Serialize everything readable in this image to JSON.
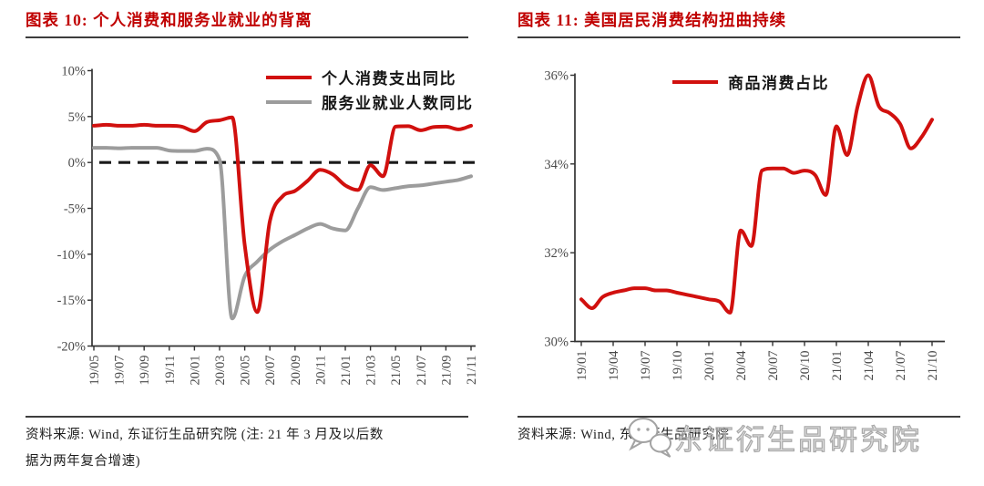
{
  "colors": {
    "title_red": "#c00000",
    "line_red": "#d1100e",
    "line_gray": "#9c9c9c",
    "dashed_reference": "#1a1a1a",
    "axis": "#333333",
    "tick_label": "#4a4a4a",
    "watermark_gray": "#a8a8a8"
  },
  "watermark": {
    "icon": "speech-bubbles-logo",
    "text": "东证衍生品研究院"
  },
  "charts": [
    {
      "header": "图表 10:  个人消费和服务业就业的背离",
      "legend": [
        {
          "label": "个人消费支出同比",
          "color": "#d1100e"
        },
        {
          "label": "服务业就业人数同比",
          "color": "#9c9c9c"
        }
      ],
      "source_lines": [
        "资料来源: Wind, 东证衍生品研究院 (注: 21 年 3 月及以后数",
        "据为两年复合增速)"
      ],
      "chart_data": {
        "type": "line",
        "x": [
          "19/05",
          "19/06",
          "19/07",
          "19/08",
          "19/09",
          "19/10",
          "19/11",
          "19/12",
          "20/01",
          "20/02",
          "20/03",
          "20/04",
          "20/05",
          "20/06",
          "20/07",
          "20/08",
          "20/09",
          "20/10",
          "20/11",
          "20/12",
          "21/01",
          "21/02",
          "21/03",
          "21/04",
          "21/05",
          "21/06",
          "21/07",
          "21/08",
          "21/09",
          "21/10",
          "21/11"
        ],
        "x_tick_labels": [
          "19/05",
          "19/07",
          "19/09",
          "19/11",
          "20/01",
          "20/03",
          "20/05",
          "20/07",
          "20/09",
          "20/11",
          "21/01",
          "21/03",
          "21/05",
          "21/07",
          "21/09",
          "21/11"
        ],
        "ylim": [
          -20,
          10
        ],
        "yticks": [
          10,
          5,
          0,
          -5,
          -10,
          -15,
          -20
        ],
        "ytick_suffix": "%",
        "grid": false,
        "legend_position": "top-right",
        "reference_line": {
          "y": 0,
          "style": "dashed",
          "color": "#1a1a1a"
        },
        "series": [
          {
            "id": "services-employment-yoy-line",
            "name": "服务业就业人数同比",
            "color": "#9c9c9c",
            "values": [
              1.6,
              1.6,
              1.55,
              1.6,
              1.6,
              1.6,
              1.3,
              1.25,
              1.25,
              1.5,
              0.3,
              -17.0,
              -12.4,
              -10.8,
              -9.5,
              -8.6,
              -7.9,
              -7.2,
              -6.7,
              -7.2,
              -7.4,
              -5.0,
              -2.7,
              -3.0,
              -2.8,
              -2.6,
              -2.5,
              -2.3,
              -2.1,
              -1.9,
              -1.5
            ]
          },
          {
            "id": "pce-yoy-line",
            "name": "个人消费支出同比",
            "color": "#d1100e",
            "values": [
              4.0,
              4.1,
              4.0,
              4.0,
              4.1,
              4.0,
              4.0,
              3.9,
              3.4,
              4.4,
              4.6,
              4.9,
              -9.0,
              -16.3,
              -6.4,
              -3.7,
              -3.1,
              -2.0,
              -0.8,
              -1.3,
              -2.5,
              -3.0,
              -0.3,
              -1.5,
              3.9,
              3.95,
              3.5,
              3.85,
              3.9,
              3.6,
              4.0
            ]
          }
        ]
      }
    },
    {
      "header": "图表 11:  美国居民消费结构扭曲持续",
      "legend": [
        {
          "label": "商品消费占比",
          "color": "#d1100e"
        }
      ],
      "source_lines": [
        "资料来源: Wind, 东证衍生品研究院"
      ],
      "chart_data": {
        "type": "line",
        "x": [
          "19/01",
          "19/02",
          "19/03",
          "19/04",
          "19/05",
          "19/06",
          "19/07",
          "19/08",
          "19/09",
          "19/10",
          "19/11",
          "19/12",
          "20/01",
          "20/02",
          "20/03",
          "20/04",
          "20/05",
          "20/06",
          "20/07",
          "20/08",
          "20/09",
          "20/10",
          "20/11",
          "20/12",
          "21/01",
          "21/02",
          "21/03",
          "21/04",
          "21/05",
          "21/06",
          "21/07",
          "21/08",
          "21/09",
          "21/10"
        ],
        "x_tick_labels": [
          "19/01",
          "19/04",
          "19/07",
          "19/10",
          "20/01",
          "20/04",
          "20/07",
          "20/10",
          "21/01",
          "21/04",
          "21/07",
          "21/10"
        ],
        "ylim": [
          30,
          36
        ],
        "yticks": [
          36,
          34,
          32,
          30
        ],
        "ytick_suffix": "%",
        "grid": false,
        "legend_position": "top-center",
        "series": [
          {
            "id": "goods-share-line",
            "name": "商品消费占比",
            "color": "#d1100e",
            "values": [
              30.95,
              30.75,
              31.0,
              31.1,
              31.15,
              31.2,
              31.2,
              31.15,
              31.15,
              31.1,
              31.05,
              31.0,
              30.95,
              30.9,
              30.65,
              32.5,
              32.15,
              33.85,
              33.9,
              33.9,
              33.8,
              33.85,
              33.75,
              33.3,
              34.85,
              34.2,
              35.3,
              36.0,
              35.3,
              35.15,
              34.9,
              34.35,
              34.6,
              35.0
            ]
          }
        ]
      }
    }
  ]
}
